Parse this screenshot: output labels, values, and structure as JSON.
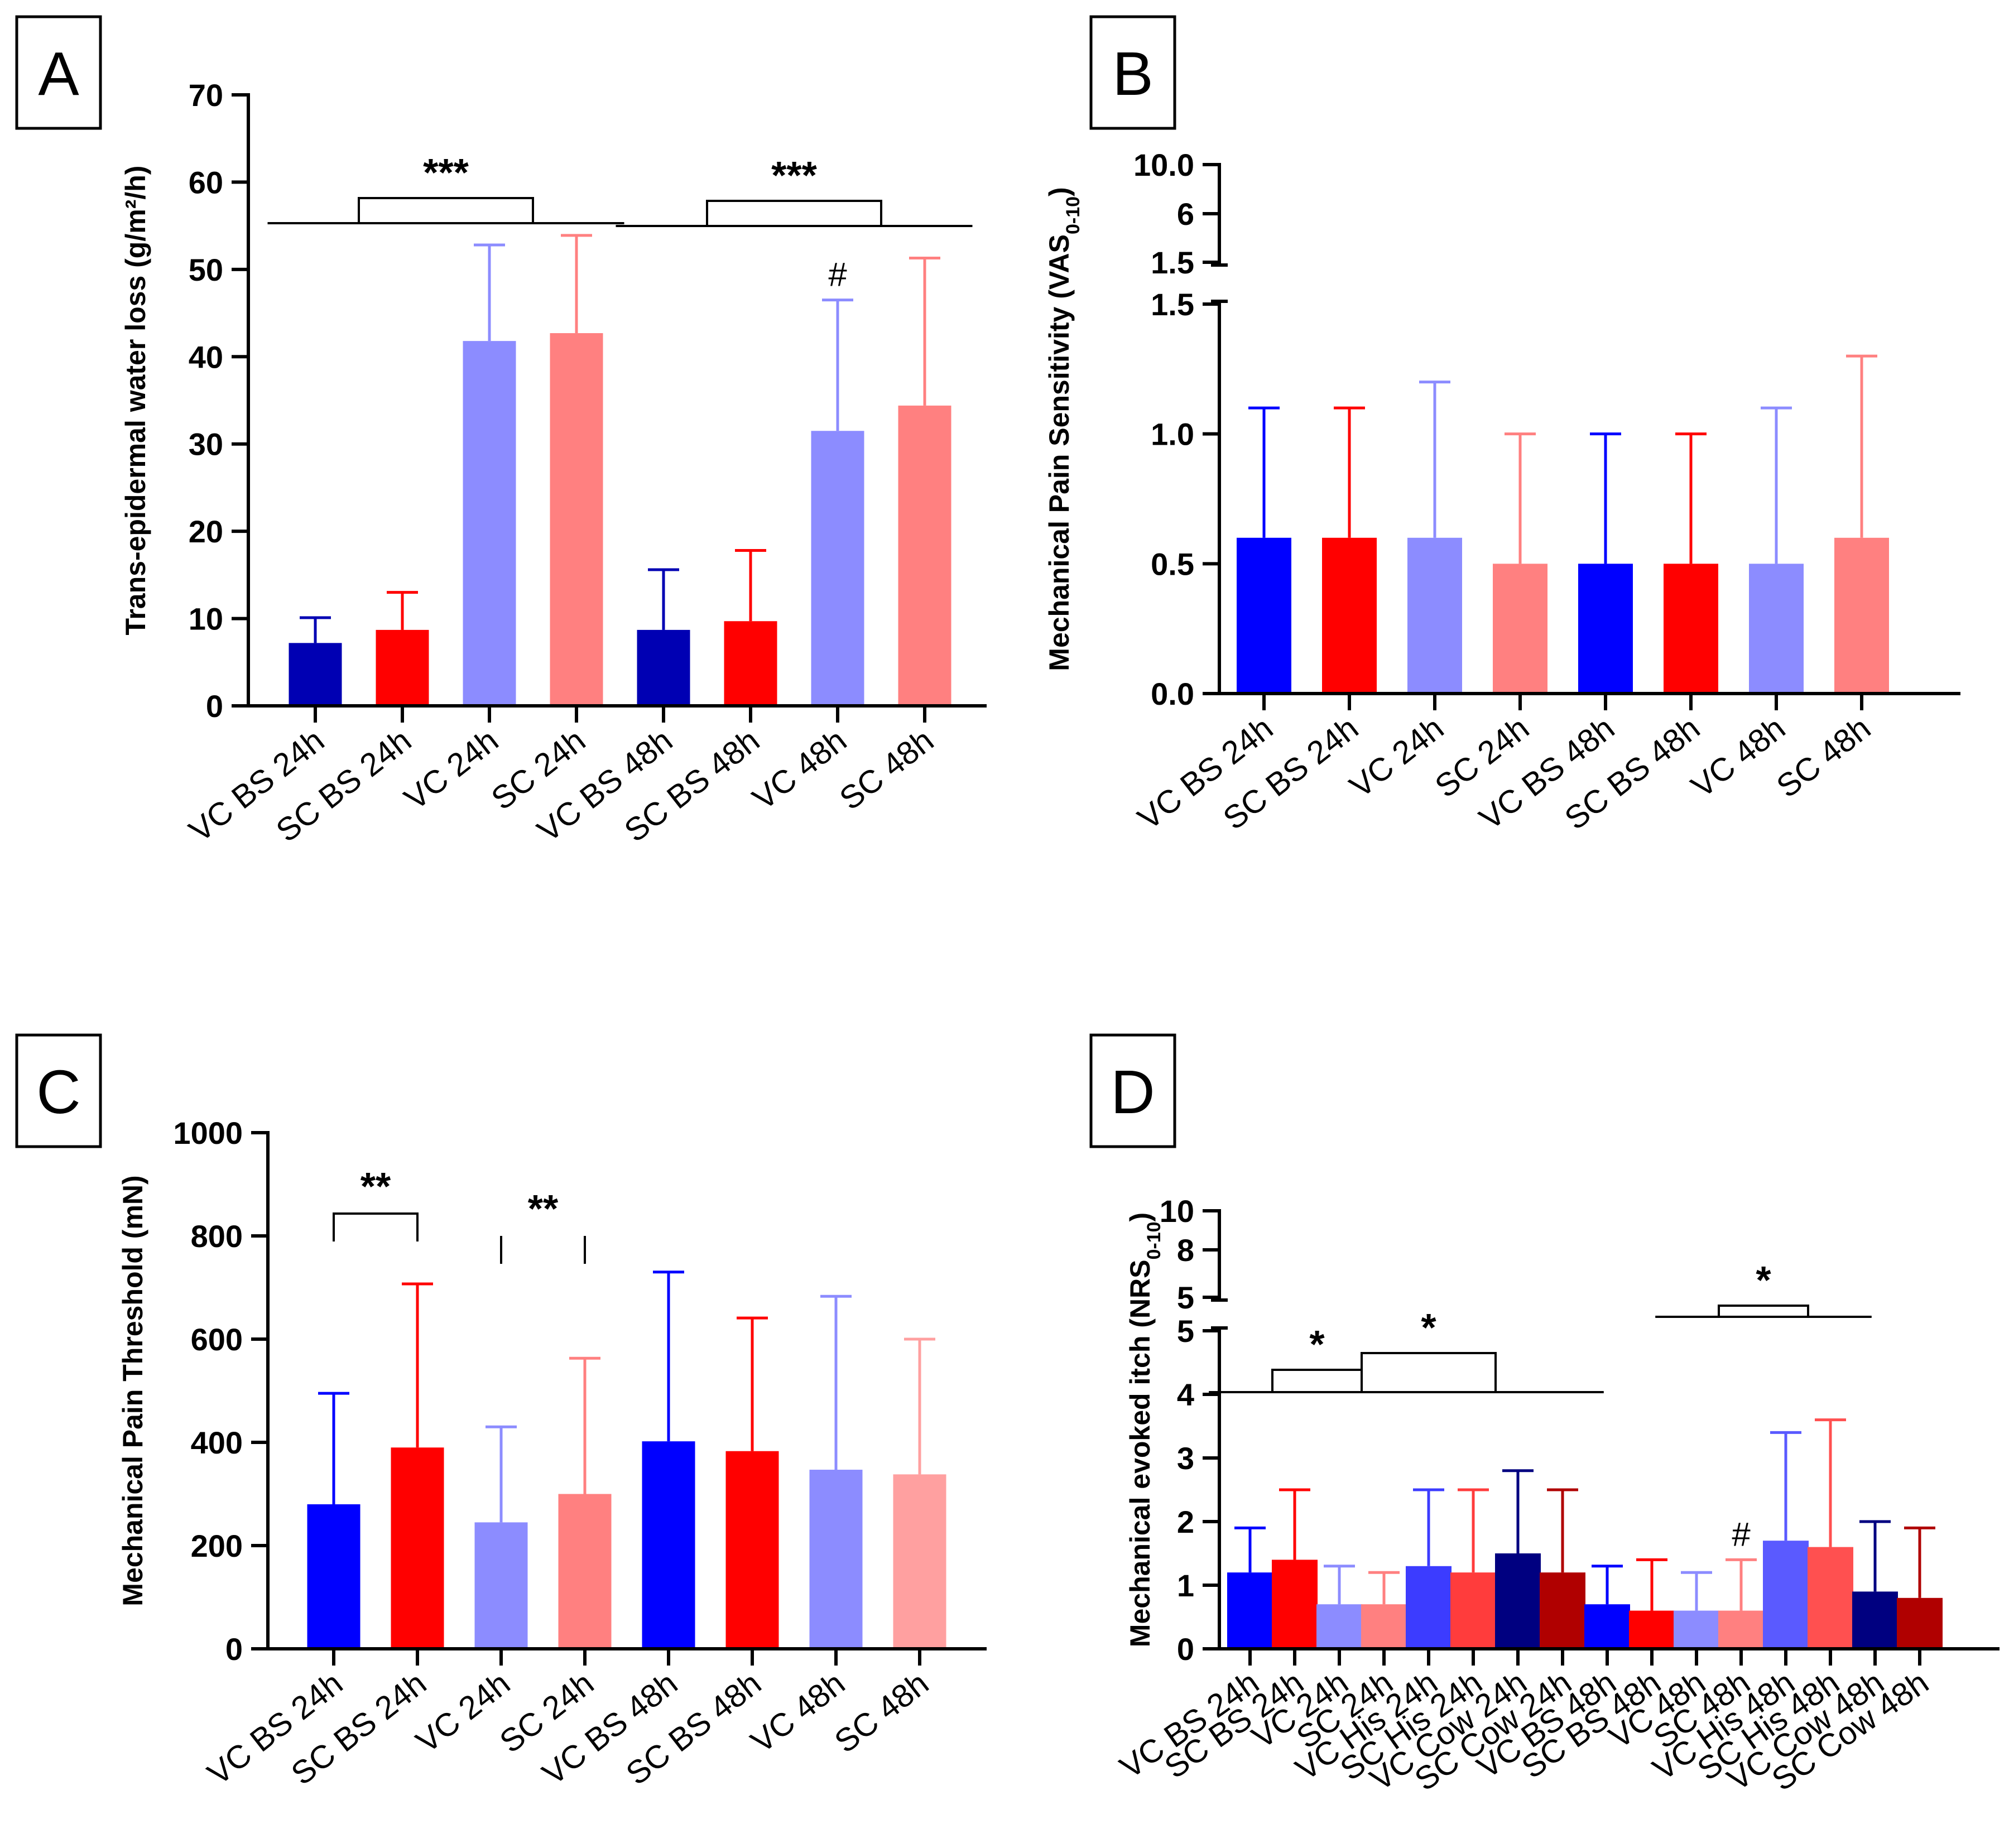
{
  "chart_data": [
    {
      "panel": "A",
      "type": "bar",
      "ylabel": "Trans-epidermal water loss (g/m²/h)",
      "ylim": [
        0,
        70
      ],
      "yticks": [
        0,
        10,
        20,
        30,
        40,
        50,
        60,
        70
      ],
      "categories": [
        "VC BS 24h",
        "SC BS 24h",
        "VC 24h",
        "SC 24h",
        "VC BS 48h",
        "SC BS 48h",
        "VC 48h",
        "SC 48h"
      ],
      "values": [
        7.2,
        8.7,
        41.8,
        42.7,
        8.7,
        9.7,
        31.5,
        34.4
      ],
      "errors": [
        2.9,
        4.3,
        11.0,
        11.2,
        6.9,
        8.1,
        15.0,
        16.9
      ],
      "colors": [
        "#0000b3",
        "#ff0000",
        "#8c8cff",
        "#ff8080",
        "#0000b3",
        "#ff0000",
        "#8c8cff",
        "#ff8080"
      ],
      "annotations": [
        {
          "text": "***",
          "between": [
            [
              0,
              1
            ],
            [
              2,
              3
            ]
          ]
        },
        {
          "text": "***",
          "between": [
            [
              4,
              5
            ],
            [
              6,
              7
            ]
          ]
        },
        {
          "text": "#",
          "bar": 6
        }
      ]
    },
    {
      "panel": "B",
      "type": "bar",
      "ylabel": "Mechanical Pain Sensitivity (VAS",
      "ylabel_sub": "0-10",
      "ylabel_end": ")",
      "ylim": [
        0,
        1.5
      ],
      "yticks": [
        0.0,
        0.5,
        1.0,
        1.5
      ],
      "ytick_labels": [
        "0.0",
        "0.5",
        "1.0",
        "1.5"
      ],
      "break_ticks": [
        "1.5",
        "6",
        "10.0"
      ],
      "categories": [
        "VC BS 24h",
        "SC BS 24h",
        "VC 24h",
        "SC 24h",
        "VC BS 48h",
        "SC BS 48h",
        "VC 48h",
        "SC 48h"
      ],
      "values": [
        0.6,
        0.6,
        0.6,
        0.5,
        0.5,
        0.5,
        0.5,
        0.6
      ],
      "errors": [
        0.5,
        0.5,
        0.6,
        0.5,
        0.5,
        0.5,
        0.6,
        0.7
      ],
      "colors": [
        "#0000ff",
        "#ff0000",
        "#8c8cff",
        "#ff8080",
        "#0000ff",
        "#ff0000",
        "#8c8cff",
        "#ff8080"
      ]
    },
    {
      "panel": "C",
      "type": "bar",
      "ylabel": "Mechanical Pain Threshold (mN)",
      "ylim": [
        0,
        1000
      ],
      "yticks": [
        0,
        200,
        400,
        600,
        800,
        1000
      ],
      "categories": [
        "VC BS 24h",
        "SC BS 24h",
        "VC 24h",
        "SC 24h",
        "VC BS 48h",
        "SC BS 48h",
        "VC 48h",
        "SC 48h"
      ],
      "values": [
        280,
        390,
        245,
        300,
        402,
        383,
        347,
        338
      ],
      "errors": [
        215,
        317,
        185,
        263,
        328,
        258,
        336,
        262
      ],
      "colors": [
        "#0000ff",
        "#ff0000",
        "#8c8cff",
        "#ff8080",
        "#0000ff",
        "#ff0000",
        "#8c8cff",
        "#ffa0a0"
      ],
      "annotations": [
        {
          "text": "**",
          "between": [
            0,
            1
          ]
        },
        {
          "text": "**",
          "between": [
            2,
            3
          ]
        }
      ]
    },
    {
      "panel": "D",
      "type": "bar",
      "ylabel": "Mechanical evoked itch (NRS",
      "ylabel_sub": "0-10",
      "ylabel_end": ")",
      "ylim": [
        0,
        5
      ],
      "yticks": [
        0,
        1,
        2,
        3,
        4,
        5
      ],
      "ytick_labels": [
        "0",
        "1",
        "2",
        "3",
        "4",
        "5"
      ],
      "break_ticks": [
        "5",
        "8",
        "10"
      ],
      "categories": [
        "VC BS 24h",
        "SC BS 24h",
        "VC 24h",
        "SC 24h",
        "VC His 24h",
        "SC His 24h",
        "VC Cow 24h",
        "SC Cow 24h",
        "VC BS 48h",
        "SC BS 48h",
        "VC 48h",
        "SC 48h",
        "VC His 48h",
        "SC His 48h",
        "VC Cow 48h",
        "SC Cow 48h"
      ],
      "values": [
        1.2,
        1.4,
        0.7,
        0.7,
        1.3,
        1.2,
        1.5,
        1.2,
        0.7,
        0.6,
        0.6,
        0.6,
        1.7,
        1.6,
        0.9,
        0.8
      ],
      "errors": [
        0.7,
        1.1,
        0.6,
        0.5,
        1.2,
        1.3,
        1.3,
        1.3,
        0.6,
        0.8,
        0.6,
        0.8,
        1.7,
        2.0,
        1.1,
        1.1
      ],
      "colors": [
        "#0000ff",
        "#ff0000",
        "#8c8cff",
        "#ff8080",
        "#3c3cff",
        "#ff3c3c",
        "#000080",
        "#b00000",
        "#0000ff",
        "#ff0000",
        "#8c8cff",
        "#ff8080",
        "#5a5aff",
        "#ff5050",
        "#000080",
        "#b00000"
      ],
      "annotations": [
        {
          "text": "*",
          "between": [
            [
              0,
              1
            ],
            [
              2,
              3
            ]
          ]
        },
        {
          "text": "*",
          "between": [
            [
              2,
              3
            ],
            [
              4,
              5,
              6,
              7
            ]
          ]
        },
        {
          "text": "*",
          "between": [
            [
              10,
              11
            ],
            [
              12,
              13
            ]
          ]
        },
        {
          "text": "#",
          "bar": 11
        }
      ]
    }
  ]
}
